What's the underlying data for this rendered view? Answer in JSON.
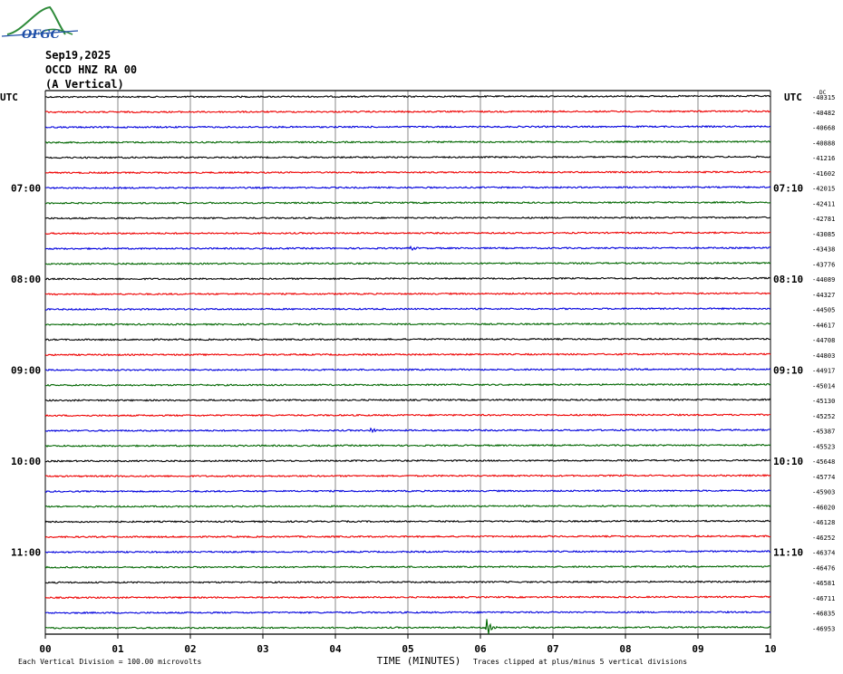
{
  "logo": {
    "text": "OFGC",
    "icon": "ofgc-logo-icon"
  },
  "header": {
    "date": "Sep19,2025",
    "station": "OCCD HNZ RA 00",
    "component": "(A Vertical)"
  },
  "chart_data": {
    "type": "line",
    "title": "",
    "xlabel": "TIME (MINUTES)",
    "ylabel": "",
    "xlim": [
      0,
      10
    ],
    "x_ticks": [
      "00",
      "01",
      "02",
      "03",
      "04",
      "05",
      "06",
      "07",
      "08",
      "09",
      "10"
    ],
    "left_axis_label": "UTC",
    "right_axis_label": "UTC",
    "left_hour_labels": [
      "07:00",
      "08:00",
      "09:00",
      "10:00",
      "11:00"
    ],
    "right_hour_labels": [
      "07:10",
      "08:10",
      "09:10",
      "10:10",
      "11:10"
    ],
    "right_top_mark": "DC",
    "trace_colors": [
      "#000000",
      "#ee0000",
      "#0000dd",
      "#006600"
    ],
    "series_offsets": [
      "-40315",
      "-40482",
      "-40668",
      "-40888",
      "-41216",
      "-41602",
      "-42015",
      "-42411",
      "-42781",
      "-43085",
      "-43438",
      "-43776",
      "-44089",
      "-44327",
      "-44505",
      "-44617",
      "-44708",
      "-44803",
      "-44917",
      "-45014",
      "-45130",
      "-45252",
      "-45387",
      "-45523",
      "-45648",
      "-45774",
      "-45903",
      "-46020",
      "-46128",
      "-46252",
      "-46374",
      "-46476",
      "-46581",
      "-46711",
      "-46835",
      "-46953"
    ],
    "events": [
      {
        "trace": 35,
        "minute": 6.1,
        "amplitude": "large",
        "color": "#006600"
      },
      {
        "trace": 22,
        "minute": 4.5,
        "amplitude": "small",
        "color": "#0000dd"
      },
      {
        "trace": 10,
        "minute": 5.05,
        "amplitude": "small",
        "color": "#0000dd"
      }
    ],
    "grid": true
  },
  "footer": {
    "scale_note": "Each Vertical Division =  100.00 microvolts",
    "clip_note": "Traces clipped at plus/minus 5 vertical divisions"
  }
}
